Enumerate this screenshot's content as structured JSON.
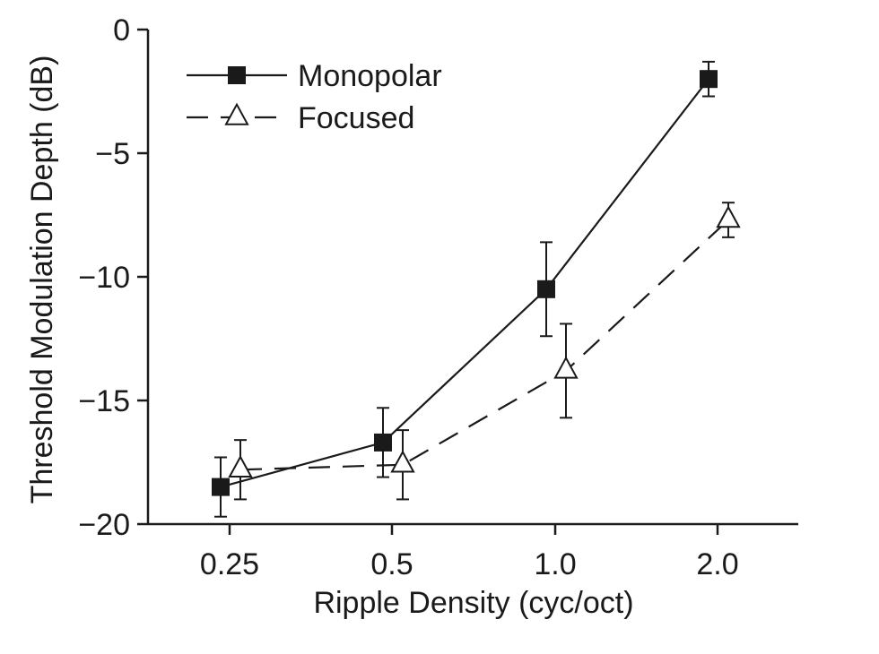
{
  "chart_data": {
    "type": "line",
    "xlabel": "Ripple Density (cyc/oct)",
    "ylabel": "Threshold Modulation Depth (dB)",
    "categories": [
      "0.25",
      "0.5",
      "1.0",
      "2.0"
    ],
    "ylim": [
      -20,
      0
    ],
    "yticks": [
      0,
      -5,
      -10,
      -15,
      -20
    ],
    "ytick_labels": [
      "0",
      "−5",
      "−10",
      "−15",
      "−20"
    ],
    "grid": false,
    "legend_position": "top-left",
    "series": [
      {
        "name": "Monopolar",
        "marker": "filled-square",
        "line_style": "solid",
        "values": [
          -18.5,
          -16.7,
          -10.5,
          -2.0
        ],
        "error": [
          1.2,
          1.4,
          1.9,
          0.7
        ]
      },
      {
        "name": "Focused",
        "marker": "open-triangle",
        "line_style": "dashed",
        "values": [
          -17.8,
          -17.6,
          -13.8,
          -7.7
        ],
        "error": [
          1.2,
          1.4,
          1.9,
          0.7
        ]
      }
    ]
  }
}
